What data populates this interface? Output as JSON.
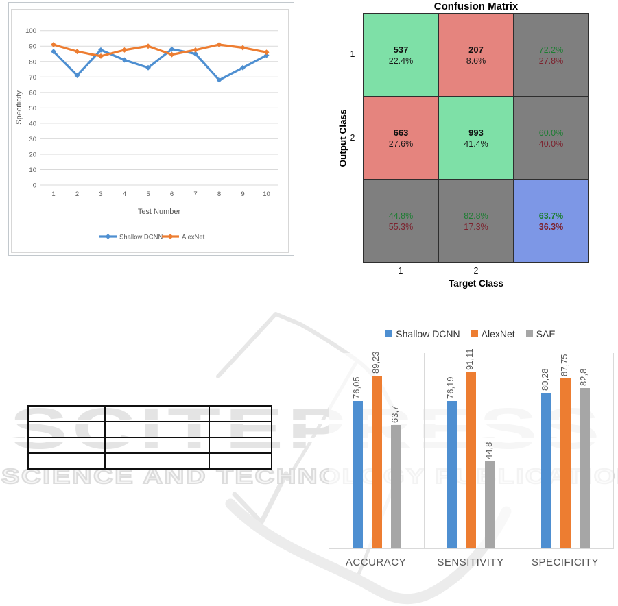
{
  "watermark": {
    "title": "SCITEPRESS",
    "subtitle": "SCIENCE AND TECHNOLOGY PUBLICATIONS"
  },
  "chart_data": [
    {
      "id": "specificity_line_chart",
      "type": "line",
      "title": "",
      "xlabel": "Test Number",
      "ylabel": "Specificity",
      "x": [
        1,
        2,
        3,
        4,
        5,
        6,
        7,
        8,
        9,
        10
      ],
      "ylim": [
        0,
        100
      ],
      "ytick_step": 10,
      "yticks": [
        0,
        10,
        20,
        30,
        40,
        50,
        60,
        70,
        80,
        90,
        100
      ],
      "grid": true,
      "legend_position": "bottom",
      "series": [
        {
          "name": "Shallow DCNN",
          "color": "#4E8FD1",
          "values": [
            86.5,
            71,
            87.5,
            81,
            76,
            88,
            85,
            68,
            76,
            84
          ]
        },
        {
          "name": "AlexNet",
          "color": "#ED7D31",
          "values": [
            91,
            86.5,
            83.5,
            87.5,
            90,
            84.5,
            87.5,
            91,
            89,
            86
          ]
        }
      ]
    },
    {
      "id": "confusion_matrix",
      "type": "heatmap",
      "title": "Confusion Matrix",
      "xlabel": "Target Class",
      "ylabel": "Output Class",
      "row_labels": [
        "1",
        "2",
        ""
      ],
      "col_labels": [
        "1",
        "2",
        ""
      ],
      "colors": {
        "diag": "#7EE0A7",
        "off": "#E5847E",
        "summary": "#7F7F7F",
        "total": "#7D97E6",
        "pos_text": "#1E7D33",
        "neg_text": "#7C222E",
        "count_text": "#111111"
      },
      "cells": [
        {
          "row": 1,
          "col": 1,
          "top": "537",
          "bottom": "22.4%",
          "kind": "diag"
        },
        {
          "row": 1,
          "col": 2,
          "top": "207",
          "bottom": "8.6%",
          "kind": "off"
        },
        {
          "row": 1,
          "col": 3,
          "top": "72.2%",
          "bottom": "27.8%",
          "kind": "summary"
        },
        {
          "row": 2,
          "col": 1,
          "top": "663",
          "bottom": "27.6%",
          "kind": "off"
        },
        {
          "row": 2,
          "col": 2,
          "top": "993",
          "bottom": "41.4%",
          "kind": "diag"
        },
        {
          "row": 2,
          "col": 3,
          "top": "60.0%",
          "bottom": "40.0%",
          "kind": "summary"
        },
        {
          "row": 3,
          "col": 1,
          "top": "44.8%",
          "bottom": "55.3%",
          "kind": "summary"
        },
        {
          "row": 3,
          "col": 2,
          "top": "82.8%",
          "bottom": "17.3%",
          "kind": "summary"
        },
        {
          "row": 3,
          "col": 3,
          "top": "63.7%",
          "bottom": "36.3%",
          "kind": "total"
        }
      ]
    },
    {
      "id": "empty_results_table",
      "type": "table",
      "rows": 4,
      "cols": 3,
      "cells": [
        [
          "",
          "",
          ""
        ],
        [
          "",
          "",
          ""
        ],
        [
          "",
          "",
          ""
        ],
        [
          "",
          "",
          ""
        ]
      ]
    },
    {
      "id": "metrics_bar_chart",
      "type": "bar",
      "categories": [
        "ACCURACY",
        "SENSITIVITY",
        "SPECIFICITY"
      ],
      "ylim": [
        0,
        100
      ],
      "legend_position": "top",
      "series": [
        {
          "name": "Shallow DCNN",
          "color": "#4E8FD1",
          "values": [
            76.05,
            76.19,
            80.28
          ],
          "labels": [
            "76,05",
            "76,19",
            "80,28"
          ]
        },
        {
          "name": "AlexNet",
          "color": "#ED7D31",
          "values": [
            89.23,
            91.11,
            87.75
          ],
          "labels": [
            "89,23",
            "91,11",
            "87,75"
          ]
        },
        {
          "name": "SAE",
          "color": "#A6A6A6",
          "values": [
            63.7,
            44.8,
            82.8
          ],
          "labels": [
            "63,7",
            "44,8",
            "82,8"
          ]
        }
      ]
    }
  ]
}
